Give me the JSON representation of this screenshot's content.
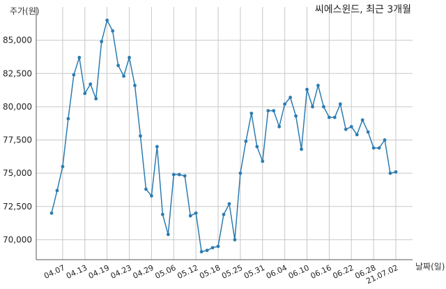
{
  "chart_data": {
    "type": "line",
    "title": "씨에스윈드, 최근 3개월",
    "ylabel": "주가(원)",
    "xlabel": "날짜(일)",
    "ylim": [
      68500,
      87500
    ],
    "yticks": [
      70000,
      72500,
      75000,
      77500,
      80000,
      82500,
      85000
    ],
    "ytick_labels": [
      "70,000",
      "72,500",
      "75,000",
      "77,500",
      "80,000",
      "82,500",
      "85,000"
    ],
    "xtick_labels": [
      "04.07",
      "04.13",
      "04.19",
      "04.23",
      "04.29",
      "05.06",
      "05.12",
      "05.18",
      "05.25",
      "05.31",
      "06.04",
      "06.10",
      "06.16",
      "06.22",
      "06.28",
      "21.07.02"
    ],
    "xtick_index": [
      2,
      6,
      10,
      14,
      18,
      22,
      26,
      30,
      34,
      38,
      42,
      46,
      50,
      54,
      58,
      62
    ],
    "grid": true,
    "series": [
      {
        "values": [
          72000,
          73700,
          75500,
          79100,
          82400,
          83700,
          81000,
          81700,
          80600,
          84900,
          86500,
          85700,
          83100,
          82300,
          83700,
          81600,
          77800,
          73800,
          73300,
          77000,
          71900,
          70400,
          74900,
          74900,
          74800,
          71800,
          72000,
          69100,
          69200,
          69400,
          69500,
          71900,
          72700,
          70000,
          75000,
          77400,
          79500,
          77000,
          75900,
          79700,
          79700,
          78500,
          80200,
          80700,
          79300,
          76800,
          81300,
          80000,
          81600,
          80000,
          79200,
          79200,
          80200,
          78300,
          78500,
          77900,
          79000,
          78100,
          76900,
          76900,
          77500,
          75000,
          75100
        ]
      }
    ]
  }
}
